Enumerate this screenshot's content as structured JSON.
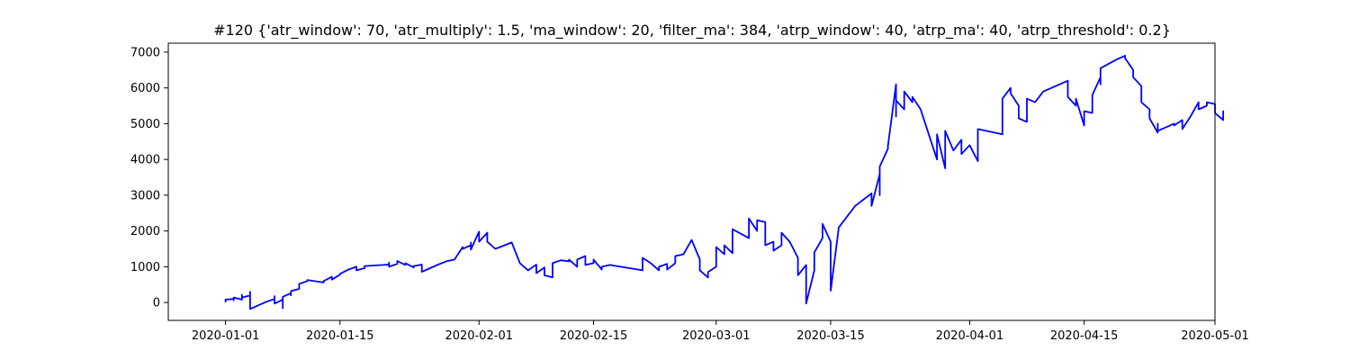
{
  "chart_data": {
    "type": "line",
    "title": "#120 {'atr_window': 70, 'atr_multiply': 1.5, 'ma_window': 20, 'filter_ma': 384, 'atrp_window': 40, 'atrp_ma': 40, 'atrp_threshold': 0.2}",
    "xlabel": "",
    "ylabel": "",
    "x_axis_type": "date",
    "xlim": [
      "2019-12-25",
      "2020-05-01"
    ],
    "ylim": [
      -500,
      7250
    ],
    "grid": false,
    "legend": "none",
    "x_ticks": [
      {
        "value": "2020-01-01",
        "label": "2020-01-01"
      },
      {
        "value": "2020-01-15",
        "label": "2020-01-15"
      },
      {
        "value": "2020-02-01",
        "label": "2020-02-01"
      },
      {
        "value": "2020-02-15",
        "label": "2020-02-15"
      },
      {
        "value": "2020-03-01",
        "label": "2020-03-01"
      },
      {
        "value": "2020-03-15",
        "label": "2020-03-15"
      },
      {
        "value": "2020-04-01",
        "label": "2020-04-01"
      },
      {
        "value": "2020-04-15",
        "label": "2020-04-15"
      },
      {
        "value": "2020-05-01",
        "label": "2020-05-01"
      }
    ],
    "y_ticks": [
      {
        "value": 0,
        "label": "0"
      },
      {
        "value": 1000,
        "label": "1000"
      },
      {
        "value": 2000,
        "label": "2000"
      },
      {
        "value": 3000,
        "label": "3000"
      },
      {
        "value": 4000,
        "label": "4000"
      },
      {
        "value": 5000,
        "label": "5000"
      },
      {
        "value": 6000,
        "label": "6000"
      },
      {
        "value": 7000,
        "label": "7000"
      }
    ],
    "series": [
      {
        "color": "#0000ff",
        "points": [
          [
            "2020-01-01",
            20
          ],
          [
            "2020-01-01",
            80
          ],
          [
            "2020-01-02",
            100
          ],
          [
            "2020-01-02",
            60
          ],
          [
            "2020-01-02",
            140
          ],
          [
            "2020-01-03",
            80
          ],
          [
            "2020-01-03",
            160
          ],
          [
            "2020-01-03",
            220
          ],
          [
            "2020-01-03",
            140
          ],
          [
            "2020-01-04",
            200
          ],
          [
            "2020-01-04",
            300
          ],
          [
            "2020-01-04",
            120
          ],
          [
            "2020-01-04",
            200
          ],
          [
            "2020-01-04",
            -180
          ],
          [
            "2020-01-06",
            20
          ],
          [
            "2020-01-07",
            100
          ],
          [
            "2020-01-07",
            180
          ],
          [
            "2020-01-07",
            90
          ],
          [
            "2020-01-07",
            -30
          ],
          [
            "2020-01-08",
            80
          ],
          [
            "2020-01-08",
            -160
          ],
          [
            "2020-01-08",
            160
          ],
          [
            "2020-01-09",
            260
          ],
          [
            "2020-01-09",
            200
          ],
          [
            "2020-01-09",
            320
          ],
          [
            "2020-01-10",
            380
          ],
          [
            "2020-01-10",
            520
          ],
          [
            "2020-01-11",
            600
          ],
          [
            "2020-01-11",
            630
          ],
          [
            "2020-01-13",
            560
          ],
          [
            "2020-01-13",
            600
          ],
          [
            "2020-01-14",
            720
          ],
          [
            "2020-01-14",
            640
          ],
          [
            "2020-01-15",
            780
          ],
          [
            "2020-01-15",
            800
          ],
          [
            "2020-01-16",
            920
          ],
          [
            "2020-01-17",
            1000
          ],
          [
            "2020-01-17",
            900
          ],
          [
            "2020-01-18",
            960
          ],
          [
            "2020-01-18",
            1020
          ],
          [
            "2020-01-21",
            1060
          ],
          [
            "2020-01-21",
            1120
          ],
          [
            "2020-01-21",
            1000
          ],
          [
            "2020-01-22",
            1080
          ],
          [
            "2020-01-22",
            1160
          ],
          [
            "2020-01-23",
            1050
          ],
          [
            "2020-01-23",
            1100
          ],
          [
            "2020-01-24",
            980
          ],
          [
            "2020-01-24",
            1020
          ],
          [
            "2020-01-25",
            1060
          ],
          [
            "2020-01-25",
            860
          ],
          [
            "2020-01-27",
            1060
          ],
          [
            "2020-01-28",
            1150
          ],
          [
            "2020-01-29",
            1200
          ],
          [
            "2020-01-30",
            1550
          ],
          [
            "2020-01-30",
            1500
          ],
          [
            "2020-01-31",
            1600
          ],
          [
            "2020-01-31",
            1680
          ],
          [
            "2020-01-31",
            1480
          ],
          [
            "2020-02-01",
            1980
          ],
          [
            "2020-02-01",
            1700
          ],
          [
            "2020-02-02",
            1950
          ],
          [
            "2020-02-02",
            1700
          ],
          [
            "2020-02-03",
            1500
          ],
          [
            "2020-02-05",
            1680
          ],
          [
            "2020-02-06",
            1100
          ],
          [
            "2020-02-07",
            900
          ],
          [
            "2020-02-08",
            1060
          ],
          [
            "2020-02-08",
            820
          ],
          [
            "2020-02-09",
            980
          ],
          [
            "2020-02-09",
            760
          ],
          [
            "2020-02-10",
            700
          ],
          [
            "2020-02-10",
            1100
          ],
          [
            "2020-02-11",
            1180
          ],
          [
            "2020-02-12",
            1150
          ],
          [
            "2020-02-12",
            1200
          ],
          [
            "2020-02-13",
            1000
          ],
          [
            "2020-02-13",
            1200
          ],
          [
            "2020-02-14",
            1300
          ],
          [
            "2020-02-14",
            1050
          ],
          [
            "2020-02-15",
            1100
          ],
          [
            "2020-02-15",
            1200
          ],
          [
            "2020-02-16",
            920
          ],
          [
            "2020-02-16",
            1000
          ],
          [
            "2020-02-17",
            1050
          ],
          [
            "2020-02-21",
            900
          ],
          [
            "2020-02-21",
            1250
          ],
          [
            "2020-02-22",
            1100
          ],
          [
            "2020-02-23",
            900
          ],
          [
            "2020-02-23",
            1000
          ],
          [
            "2020-02-24",
            1080
          ],
          [
            "2020-02-24",
            920
          ],
          [
            "2020-02-25",
            1100
          ],
          [
            "2020-02-25",
            1300
          ],
          [
            "2020-02-26",
            1350
          ],
          [
            "2020-02-27",
            1750
          ],
          [
            "2020-02-28",
            1200
          ],
          [
            "2020-02-28",
            900
          ],
          [
            "2020-02-29",
            700
          ],
          [
            "2020-02-29",
            850
          ],
          [
            "2020-03-01",
            1000
          ],
          [
            "2020-03-01",
            1550
          ],
          [
            "2020-03-02",
            1350
          ],
          [
            "2020-03-02",
            1600
          ],
          [
            "2020-03-03",
            1380
          ],
          [
            "2020-03-03",
            2050
          ],
          [
            "2020-03-05",
            1800
          ],
          [
            "2020-03-05",
            2350
          ],
          [
            "2020-03-06",
            2000
          ],
          [
            "2020-03-06",
            2300
          ],
          [
            "2020-03-07",
            2250
          ],
          [
            "2020-03-07",
            1600
          ],
          [
            "2020-03-08",
            1700
          ],
          [
            "2020-03-08",
            1450
          ],
          [
            "2020-03-09",
            1600
          ],
          [
            "2020-03-09",
            1950
          ],
          [
            "2020-03-10",
            1700
          ],
          [
            "2020-03-11",
            1250
          ],
          [
            "2020-03-11",
            760
          ],
          [
            "2020-03-12",
            1050
          ],
          [
            "2020-03-12",
            800
          ],
          [
            "2020-03-12",
            -30
          ],
          [
            "2020-03-13",
            900
          ],
          [
            "2020-03-13",
            1400
          ],
          [
            "2020-03-14",
            1800
          ],
          [
            "2020-03-14",
            2200
          ],
          [
            "2020-03-15",
            1700
          ],
          [
            "2020-03-15",
            1100
          ],
          [
            "2020-03-15",
            1500
          ],
          [
            "2020-03-15",
            330
          ],
          [
            "2020-03-16",
            2100
          ],
          [
            "2020-03-18",
            2700
          ],
          [
            "2020-03-20",
            3050
          ],
          [
            "2020-03-20",
            2700
          ],
          [
            "2020-03-21",
            3600
          ],
          [
            "2020-03-21",
            3000
          ],
          [
            "2020-03-21",
            3800
          ],
          [
            "2020-03-22",
            4300
          ],
          [
            "2020-03-22",
            4380
          ],
          [
            "2020-03-23",
            6100
          ],
          [
            "2020-03-23",
            5200
          ],
          [
            "2020-03-23",
            5650
          ],
          [
            "2020-03-24",
            5400
          ],
          [
            "2020-03-24",
            5900
          ],
          [
            "2020-03-25",
            5600
          ],
          [
            "2020-03-25",
            5750
          ],
          [
            "2020-03-26",
            5400
          ],
          [
            "2020-03-28",
            4000
          ],
          [
            "2020-03-28",
            4700
          ],
          [
            "2020-03-29",
            3750
          ],
          [
            "2020-03-29",
            4800
          ],
          [
            "2020-03-30",
            4250
          ],
          [
            "2020-03-31",
            4550
          ],
          [
            "2020-03-31",
            4150
          ],
          [
            "2020-04-01",
            4400
          ],
          [
            "2020-04-02",
            3950
          ],
          [
            "2020-04-02",
            4850
          ],
          [
            "2020-04-05",
            4700
          ],
          [
            "2020-04-05",
            5700
          ],
          [
            "2020-04-06",
            6000
          ],
          [
            "2020-04-06",
            5850
          ],
          [
            "2020-04-07",
            5500
          ],
          [
            "2020-04-07",
            5150
          ],
          [
            "2020-04-08",
            5050
          ],
          [
            "2020-04-08",
            5700
          ],
          [
            "2020-04-09",
            5600
          ],
          [
            "2020-04-10",
            5900
          ],
          [
            "2020-04-13",
            6200
          ],
          [
            "2020-04-13",
            5750
          ],
          [
            "2020-04-14",
            5500
          ],
          [
            "2020-04-14",
            5700
          ],
          [
            "2020-04-15",
            4950
          ],
          [
            "2020-04-15",
            5350
          ],
          [
            "2020-04-16",
            5300
          ],
          [
            "2020-04-16",
            5800
          ],
          [
            "2020-04-17",
            6300
          ],
          [
            "2020-04-17",
            6100
          ],
          [
            "2020-04-17",
            6550
          ],
          [
            "2020-04-19",
            6800
          ],
          [
            "2020-04-20",
            6900
          ],
          [
            "2020-04-20",
            6830
          ],
          [
            "2020-04-21",
            6500
          ],
          [
            "2020-04-21",
            6300
          ],
          [
            "2020-04-22",
            6050
          ],
          [
            "2020-04-22",
            5600
          ],
          [
            "2020-04-23",
            5400
          ],
          [
            "2020-04-23",
            5150
          ],
          [
            "2020-04-24",
            4750
          ],
          [
            "2020-04-24",
            5000
          ],
          [
            "2020-04-24",
            4800
          ],
          [
            "2020-04-26",
            5000
          ],
          [
            "2020-04-26",
            4950
          ],
          [
            "2020-04-27",
            5100
          ],
          [
            "2020-04-27",
            4850
          ],
          [
            "2020-04-28",
            5200
          ],
          [
            "2020-04-29",
            5600
          ],
          [
            "2020-04-29",
            5400
          ],
          [
            "2020-04-30",
            5500
          ],
          [
            "2020-04-30",
            5600
          ],
          [
            "2020-05-01",
            5550
          ],
          [
            "2020-05-01",
            5300
          ],
          [
            "2020-05-02",
            5100
          ],
          [
            "2020-05-02",
            5300
          ],
          [
            "2020-05-02",
            5200
          ],
          [
            "2020-05-02",
            5350
          ],
          [
            "2020-05-02",
            5250
          ]
        ]
      }
    ]
  }
}
